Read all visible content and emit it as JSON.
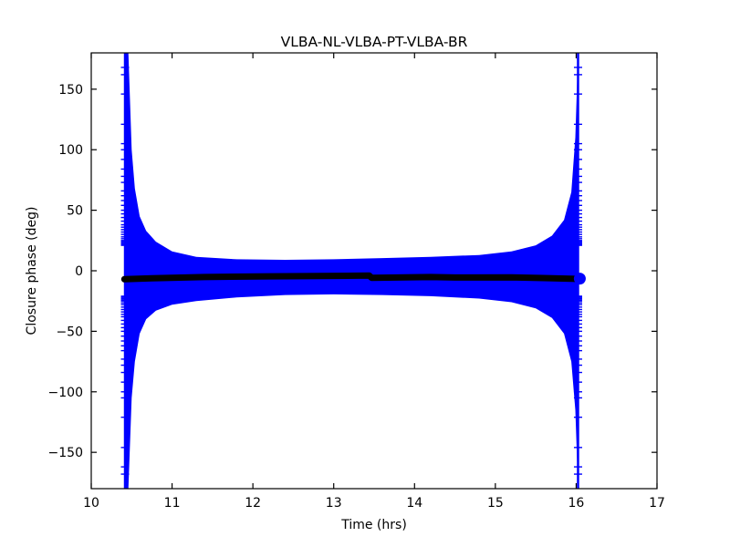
{
  "window": {
    "background": "#ffffff"
  },
  "chart_data": {
    "type": "scatter",
    "title": "VLBA-NL-VLBA-PT-VLBA-BR",
    "xlabel": "Time (hrs)",
    "ylabel": "Closure phase (deg)",
    "xlim": [
      10,
      17
    ],
    "ylim": [
      -180,
      180
    ],
    "xticks": [
      10,
      11,
      12,
      13,
      14,
      15,
      16,
      17
    ],
    "xtick_labels": [
      "10",
      "11",
      "12",
      "13",
      "14",
      "15",
      "16",
      "17"
    ],
    "yticks": [
      -150,
      -100,
      -50,
      0,
      50,
      100,
      150
    ],
    "ytick_labels": [
      "−150",
      "−100",
      "−50",
      "0",
      "50",
      "100",
      "150"
    ],
    "grid": false,
    "legend_position": "none",
    "axes_rect": [
      100,
      58,
      620,
      478
    ],
    "tick_length": 6,
    "colors": {
      "raw": "#0000ff",
      "mean": "#000000",
      "frame": "#000000"
    },
    "series": [
      {
        "name": "raw-closure-phase-envelope",
        "type": "envelope",
        "color": "#0000ff",
        "description": "dense phase-wrapped raw closure phases forming a filled envelope, diverging to +/-180 deg at the scan edges",
        "points": [
          [
            10.418,
            180,
            -180
          ],
          [
            10.46,
            180,
            -180
          ],
          [
            10.5,
            100,
            -105
          ],
          [
            10.54,
            68,
            -75
          ],
          [
            10.6,
            45,
            -52
          ],
          [
            10.68,
            33,
            -40
          ],
          [
            10.8,
            24,
            -33
          ],
          [
            11.0,
            16,
            -28
          ],
          [
            11.3,
            11.5,
            -25
          ],
          [
            11.8,
            9.5,
            -22
          ],
          [
            12.4,
            9.0,
            -20
          ],
          [
            13.0,
            9.5,
            -19.5
          ],
          [
            13.6,
            10.5,
            -20
          ],
          [
            14.2,
            11.5,
            -21
          ],
          [
            14.8,
            13,
            -23
          ],
          [
            15.2,
            16,
            -26
          ],
          [
            15.5,
            21,
            -31
          ],
          [
            15.7,
            29,
            -39
          ],
          [
            15.85,
            42,
            -52
          ],
          [
            15.94,
            65,
            -75
          ],
          [
            15.99,
            110,
            -115
          ],
          [
            16.023,
            180,
            -180
          ]
        ]
      },
      {
        "name": "phase-wrap-vertical-lines",
        "type": "vlines",
        "color": "#0000ff",
        "t": [
          10.418,
          16.023
        ],
        "line_width": 2.5,
        "dash_half_width": 4.5,
        "tick_degrees": [
          168,
          162,
          146,
          121,
          105,
          100,
          92,
          84,
          78,
          73,
          66,
          62,
          58,
          54,
          50,
          47,
          44,
          41,
          38,
          36,
          34,
          32,
          30,
          28,
          26.5,
          25,
          24,
          23,
          22,
          21
        ]
      },
      {
        "name": "averaged-closure-phase",
        "type": "line",
        "color": "#000000",
        "width": 7,
        "points": [
          [
            10.41,
            -7.0
          ],
          [
            10.75,
            -6.2
          ],
          [
            11.4,
            -5.2
          ],
          [
            12.2,
            -4.6
          ],
          [
            13.0,
            -4.2
          ],
          [
            13.44,
            -4.0
          ],
          [
            13.47,
            -5.8
          ],
          [
            14.2,
            -5.2
          ],
          [
            14.5,
            -5.6
          ],
          [
            15.2,
            -5.4
          ],
          [
            15.6,
            -6.0
          ],
          [
            16.05,
            -6.8
          ]
        ]
      },
      {
        "name": "end-point-marker",
        "type": "marker",
        "color": "#0000ff",
        "point": [
          16.045,
          -6.5
        ],
        "radius": 6.5
      }
    ]
  }
}
